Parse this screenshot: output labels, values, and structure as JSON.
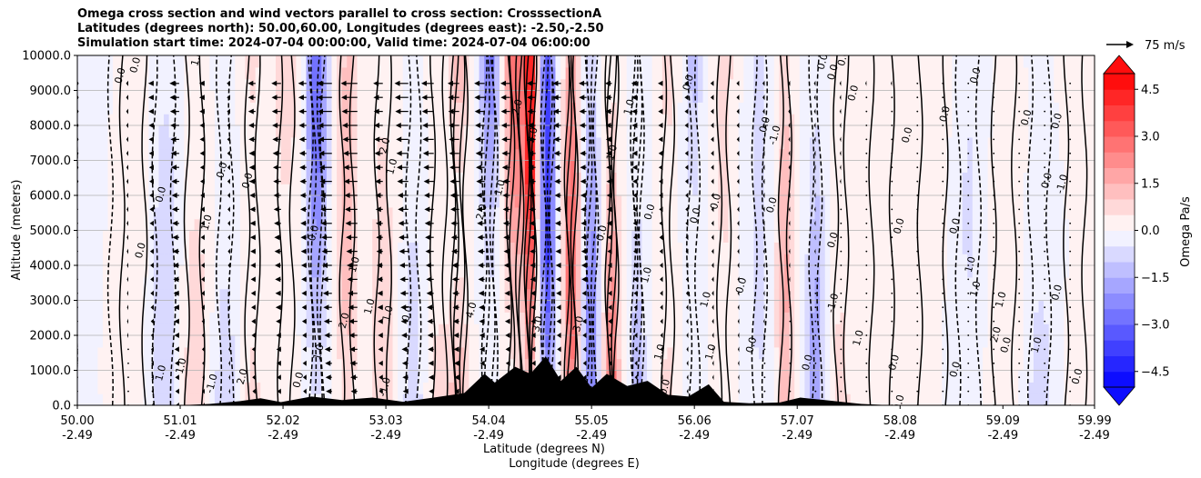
{
  "chart_data": {
    "type": "heatmap",
    "title_lines": [
      "Omega cross section and wind vectors parallel to cross section: CrosssectionA",
      "Latitudes (degrees north): 50.00,60.00, Longitudes (degrees east): -2.50,-2.50",
      "Simulation start time: 2024-07-04 00:00:00, Valid time: 2024-07-04 06:00:00"
    ],
    "xlabel_line1": "Latitude (degrees N)",
    "xlabel_line2": "Longitude (degrees E)",
    "ylabel": "Altitude (meters)",
    "colorbar_label": "Omega Pa/s",
    "quiver_key": "75 m/s",
    "xlim": [
      50.0,
      59.99
    ],
    "ylim": [
      0,
      10000
    ],
    "x_ticks": [
      {
        "value": 50.0,
        "lat": "50.00",
        "lon": "-2.49"
      },
      {
        "value": 51.01,
        "lat": "51.01",
        "lon": "-2.49"
      },
      {
        "value": 52.02,
        "lat": "52.02",
        "lon": "-2.49"
      },
      {
        "value": 53.03,
        "lat": "53.03",
        "lon": "-2.49"
      },
      {
        "value": 54.04,
        "lat": "54.04",
        "lon": "-2.49"
      },
      {
        "value": 55.05,
        "lat": "55.05",
        "lon": "-2.49"
      },
      {
        "value": 56.06,
        "lat": "56.06",
        "lon": "-2.49"
      },
      {
        "value": 57.07,
        "lat": "57.07",
        "lon": "-2.49"
      },
      {
        "value": 58.08,
        "lat": "58.08",
        "lon": "-2.49"
      },
      {
        "value": 59.09,
        "lat": "59.09",
        "lon": "-2.49"
      },
      {
        "value": 59.99,
        "lat": "59.99",
        "lon": "-2.49"
      }
    ],
    "y_ticks": [
      {
        "value": 0,
        "label": "0.0"
      },
      {
        "value": 1000,
        "label": "1000.0"
      },
      {
        "value": 2000,
        "label": "2000.0"
      },
      {
        "value": 3000,
        "label": "3000.0"
      },
      {
        "value": 4000,
        "label": "4000.0"
      },
      {
        "value": 5000,
        "label": "5000.0"
      },
      {
        "value": 6000,
        "label": "6000.0"
      },
      {
        "value": 7000,
        "label": "7000.0"
      },
      {
        "value": 8000,
        "label": "8000.0"
      },
      {
        "value": 9000,
        "label": "9000.0"
      },
      {
        "value": 10000,
        "label": "10000.0"
      }
    ],
    "colorbar": {
      "vmin": -5.0,
      "vmax": 5.0,
      "levels": [
        -5.0,
        -4.5,
        -4.0,
        -3.5,
        -3.0,
        -2.5,
        -2.0,
        -1.5,
        -1.0,
        -0.5,
        0.0,
        0.5,
        1.0,
        1.5,
        2.0,
        2.5,
        3.0,
        3.5,
        4.0,
        4.5,
        5.0
      ],
      "ticks": [
        {
          "value": 4.5,
          "label": "4.5"
        },
        {
          "value": 3.0,
          "label": "3.0"
        },
        {
          "value": 1.5,
          "label": "1.5"
        },
        {
          "value": 0.0,
          "label": "0.0"
        },
        {
          "value": -1.5,
          "label": "−1.5"
        },
        {
          "value": -3.0,
          "label": "−3.0"
        },
        {
          "value": -4.5,
          "label": "−4.5"
        }
      ],
      "extend": "both"
    },
    "omega_columns": [
      {
        "lat": 50.15,
        "width": 0.35,
        "peak": -0.3
      },
      {
        "lat": 50.55,
        "width": 0.22,
        "peak": 0.6
      },
      {
        "lat": 50.85,
        "width": 0.18,
        "peak": -0.9
      },
      {
        "lat": 51.15,
        "width": 0.15,
        "peak": 0.9
      },
      {
        "lat": 51.45,
        "width": 0.12,
        "peak": -1.2
      },
      {
        "lat": 51.72,
        "width": 0.1,
        "peak": 1.6
      },
      {
        "lat": 52.05,
        "width": 0.12,
        "peak": 1.2
      },
      {
        "lat": 52.35,
        "width": 0.1,
        "peak": -3.0
      },
      {
        "lat": 52.65,
        "width": 0.1,
        "peak": 1.4
      },
      {
        "lat": 53.0,
        "width": 0.12,
        "peak": 0.9
      },
      {
        "lat": 53.3,
        "width": 0.1,
        "peak": -1.0
      },
      {
        "lat": 53.55,
        "width": 0.12,
        "peak": 1.0
      },
      {
        "lat": 53.75,
        "width": 0.1,
        "peak": 3.5
      },
      {
        "lat": 54.05,
        "width": 0.09,
        "peak": -3.2
      },
      {
        "lat": 54.3,
        "width": 0.1,
        "peak": 3.0
      },
      {
        "lat": 54.45,
        "width": 0.06,
        "peak": 4.8
      },
      {
        "lat": 54.62,
        "width": 0.07,
        "peak": -4.0
      },
      {
        "lat": 54.85,
        "width": 0.07,
        "peak": 3.2
      },
      {
        "lat": 55.05,
        "width": 0.07,
        "peak": -2.6
      },
      {
        "lat": 55.25,
        "width": 0.07,
        "peak": 2.8
      },
      {
        "lat": 55.5,
        "width": 0.07,
        "peak": -2.2
      },
      {
        "lat": 55.8,
        "width": 0.08,
        "peak": 2.0
      },
      {
        "lat": 56.05,
        "width": 0.08,
        "peak": -1.6
      },
      {
        "lat": 56.35,
        "width": 0.09,
        "peak": 0.9
      },
      {
        "lat": 56.7,
        "width": 0.1,
        "peak": -0.8
      },
      {
        "lat": 56.95,
        "width": 0.08,
        "peak": 1.6
      },
      {
        "lat": 57.25,
        "width": 0.08,
        "peak": -2.0
      },
      {
        "lat": 57.5,
        "width": 0.1,
        "peak": 0.9
      },
      {
        "lat": 57.9,
        "width": 0.2,
        "peak": 0.3
      },
      {
        "lat": 58.4,
        "width": 0.25,
        "peak": 0.4
      },
      {
        "lat": 58.75,
        "width": 0.2,
        "peak": -0.6
      },
      {
        "lat": 59.1,
        "width": 0.2,
        "peak": 0.5
      },
      {
        "lat": 59.45,
        "width": 0.18,
        "peak": -0.8
      },
      {
        "lat": 59.8,
        "width": 0.18,
        "peak": 0.4
      }
    ],
    "wind_columns": [
      {
        "lat": 50.0,
        "u": 5
      },
      {
        "lat": 50.5,
        "u": -8
      },
      {
        "lat": 50.75,
        "u": -20
      },
      {
        "lat": 51.0,
        "u": -35
      },
      {
        "lat": 51.25,
        "u": -20
      },
      {
        "lat": 51.5,
        "u": -12
      },
      {
        "lat": 51.75,
        "u": -28
      },
      {
        "lat": 52.0,
        "u": -35
      },
      {
        "lat": 52.25,
        "u": -30
      },
      {
        "lat": 52.5,
        "u": -55
      },
      {
        "lat": 52.75,
        "u": -60
      },
      {
        "lat": 53.0,
        "u": -35
      },
      {
        "lat": 53.25,
        "u": -50
      },
      {
        "lat": 53.5,
        "u": -45
      },
      {
        "lat": 53.75,
        "u": -42
      },
      {
        "lat": 54.0,
        "u": -38
      },
      {
        "lat": 54.25,
        "u": -35
      },
      {
        "lat": 54.5,
        "u": -32
      },
      {
        "lat": 54.75,
        "u": -30
      },
      {
        "lat": 55.0,
        "u": -28
      },
      {
        "lat": 55.25,
        "u": -25
      },
      {
        "lat": 55.5,
        "u": -22
      },
      {
        "lat": 55.75,
        "u": -18
      },
      {
        "lat": 56.0,
        "u": -14
      },
      {
        "lat": 56.25,
        "u": -12
      },
      {
        "lat": 56.5,
        "u": -10
      },
      {
        "lat": 56.75,
        "u": -8
      },
      {
        "lat": 57.0,
        "u": -7
      },
      {
        "lat": 57.25,
        "u": -6
      },
      {
        "lat": 57.5,
        "u": -5
      },
      {
        "lat": 57.75,
        "u": -4
      },
      {
        "lat": 58.0,
        "u": -4
      },
      {
        "lat": 58.25,
        "u": -3
      },
      {
        "lat": 58.5,
        "u": -3
      },
      {
        "lat": 58.75,
        "u": -3
      },
      {
        "lat": 59.0,
        "u": -3
      },
      {
        "lat": 59.25,
        "u": -2
      },
      {
        "lat": 59.5,
        "u": -2
      },
      {
        "lat": 59.75,
        "u": -2
      }
    ],
    "contour_labels": [
      {
        "lat": 50.45,
        "alt": 9400,
        "text": "0.0"
      },
      {
        "lat": 50.6,
        "alt": 9700,
        "text": "0.0"
      },
      {
        "lat": 50.85,
        "alt": 6000,
        "text": "0.0"
      },
      {
        "lat": 50.65,
        "alt": 4400,
        "text": "0.0"
      },
      {
        "lat": 50.85,
        "alt": 900,
        "text": "1.0"
      },
      {
        "lat": 51.05,
        "alt": 1100,
        "text": "1.0"
      },
      {
        "lat": 51.2,
        "alt": 9900,
        "text": "1.0"
      },
      {
        "lat": 51.3,
        "alt": 5200,
        "text": "1.0"
      },
      {
        "lat": 51.45,
        "alt": 6700,
        "text": "0.0"
      },
      {
        "lat": 51.35,
        "alt": 600,
        "text": "-1.0"
      },
      {
        "lat": 51.65,
        "alt": 800,
        "text": "2.0"
      },
      {
        "lat": 51.7,
        "alt": 6400,
        "text": "0.0"
      },
      {
        "lat": 52.2,
        "alt": 700,
        "text": "0.0"
      },
      {
        "lat": 52.35,
        "alt": 4900,
        "text": "0.0"
      },
      {
        "lat": 52.4,
        "alt": 1500,
        "text": "1.0"
      },
      {
        "lat": 52.75,
        "alt": 4000,
        "text": "1.0"
      },
      {
        "lat": 52.65,
        "alt": 2400,
        "text": "2.0"
      },
      {
        "lat": 52.9,
        "alt": 2800,
        "text": "1.0"
      },
      {
        "lat": 53.05,
        "alt": 7400,
        "text": "2.0"
      },
      {
        "lat": 53.12,
        "alt": 6800,
        "text": "1.0"
      },
      {
        "lat": 53.08,
        "alt": 2600,
        "text": "1.0"
      },
      {
        "lat": 53.27,
        "alt": 2600,
        "text": "0.0"
      },
      {
        "lat": 53.05,
        "alt": 500,
        "text": "-1.0"
      },
      {
        "lat": 53.9,
        "alt": 2700,
        "text": "4.0"
      },
      {
        "lat": 54.0,
        "alt": 5500,
        "text": "2.0"
      },
      {
        "lat": 54.18,
        "alt": 6200,
        "text": "1.0"
      },
      {
        "lat": 54.35,
        "alt": 8500,
        "text": "2.0"
      },
      {
        "lat": 54.5,
        "alt": 7700,
        "text": "3.0"
      },
      {
        "lat": 54.55,
        "alt": 2300,
        "text": "3.0"
      },
      {
        "lat": 54.95,
        "alt": 2300,
        "text": "3.0"
      },
      {
        "lat": 55.18,
        "alt": 4900,
        "text": "0.0"
      },
      {
        "lat": 55.28,
        "alt": 7200,
        "text": "1.0"
      },
      {
        "lat": 55.45,
        "alt": 8500,
        "text": "1.0"
      },
      {
        "lat": 55.65,
        "alt": 5500,
        "text": "0.0"
      },
      {
        "lat": 55.62,
        "alt": 3700,
        "text": "1.0"
      },
      {
        "lat": 55.75,
        "alt": 1500,
        "text": "1.0"
      },
      {
        "lat": 55.8,
        "alt": 500,
        "text": "0.0"
      },
      {
        "lat": 56.03,
        "alt": 9200,
        "text": "0.0"
      },
      {
        "lat": 56.1,
        "alt": 5400,
        "text": "0.0"
      },
      {
        "lat": 56.2,
        "alt": 3000,
        "text": "1.0"
      },
      {
        "lat": 56.25,
        "alt": 1500,
        "text": "1.0"
      },
      {
        "lat": 56.3,
        "alt": 5800,
        "text": "0.0"
      },
      {
        "lat": 56.55,
        "alt": 3400,
        "text": "0.0"
      },
      {
        "lat": 56.65,
        "alt": 1700,
        "text": "0.0"
      },
      {
        "lat": 56.78,
        "alt": 8000,
        "text": "0.0"
      },
      {
        "lat": 56.85,
        "alt": 5700,
        "text": "0.0"
      },
      {
        "lat": 56.88,
        "alt": 7700,
        "text": "-1.0"
      },
      {
        "lat": 57.2,
        "alt": 1200,
        "text": "0.0"
      },
      {
        "lat": 57.35,
        "alt": 9800,
        "text": "0.0"
      },
      {
        "lat": 57.45,
        "alt": 9500,
        "text": "0.0"
      },
      {
        "lat": 57.55,
        "alt": 9900,
        "text": "0.0"
      },
      {
        "lat": 57.45,
        "alt": 4700,
        "text": "0.0"
      },
      {
        "lat": 57.45,
        "alt": 2900,
        "text": "-1.0"
      },
      {
        "lat": 57.65,
        "alt": 8900,
        "text": "0.0"
      },
      {
        "lat": 57.7,
        "alt": 1900,
        "text": "1.0"
      },
      {
        "lat": 58.05,
        "alt": 1200,
        "text": "0.0"
      },
      {
        "lat": 58.1,
        "alt": 50,
        "text": "0.0"
      },
      {
        "lat": 58.1,
        "alt": 5100,
        "text": "0.0"
      },
      {
        "lat": 58.18,
        "alt": 7700,
        "text": "0.0"
      },
      {
        "lat": 58.55,
        "alt": 8300,
        "text": "0.0"
      },
      {
        "lat": 58.65,
        "alt": 5100,
        "text": "0.0"
      },
      {
        "lat": 58.65,
        "alt": 1000,
        "text": "0.0"
      },
      {
        "lat": 58.85,
        "alt": 3300,
        "text": "1.0"
      },
      {
        "lat": 58.8,
        "alt": 4000,
        "text": "1.0"
      },
      {
        "lat": 58.85,
        "alt": 9400,
        "text": "0.0"
      },
      {
        "lat": 59.05,
        "alt": 2000,
        "text": "2.0"
      },
      {
        "lat": 59.1,
        "alt": 3000,
        "text": "1.0"
      },
      {
        "lat": 59.15,
        "alt": 1700,
        "text": "0.0"
      },
      {
        "lat": 59.35,
        "alt": 8200,
        "text": "0.0"
      },
      {
        "lat": 59.55,
        "alt": 6400,
        "text": "0.0"
      },
      {
        "lat": 59.65,
        "alt": 8100,
        "text": "0.0"
      },
      {
        "lat": 59.7,
        "alt": 6300,
        "text": "-1.0"
      },
      {
        "lat": 59.65,
        "alt": 3200,
        "text": "0.0"
      },
      {
        "lat": 59.45,
        "alt": 1700,
        "text": "1.0"
      },
      {
        "lat": 59.85,
        "alt": 800,
        "text": "0.0"
      }
    ]
  }
}
